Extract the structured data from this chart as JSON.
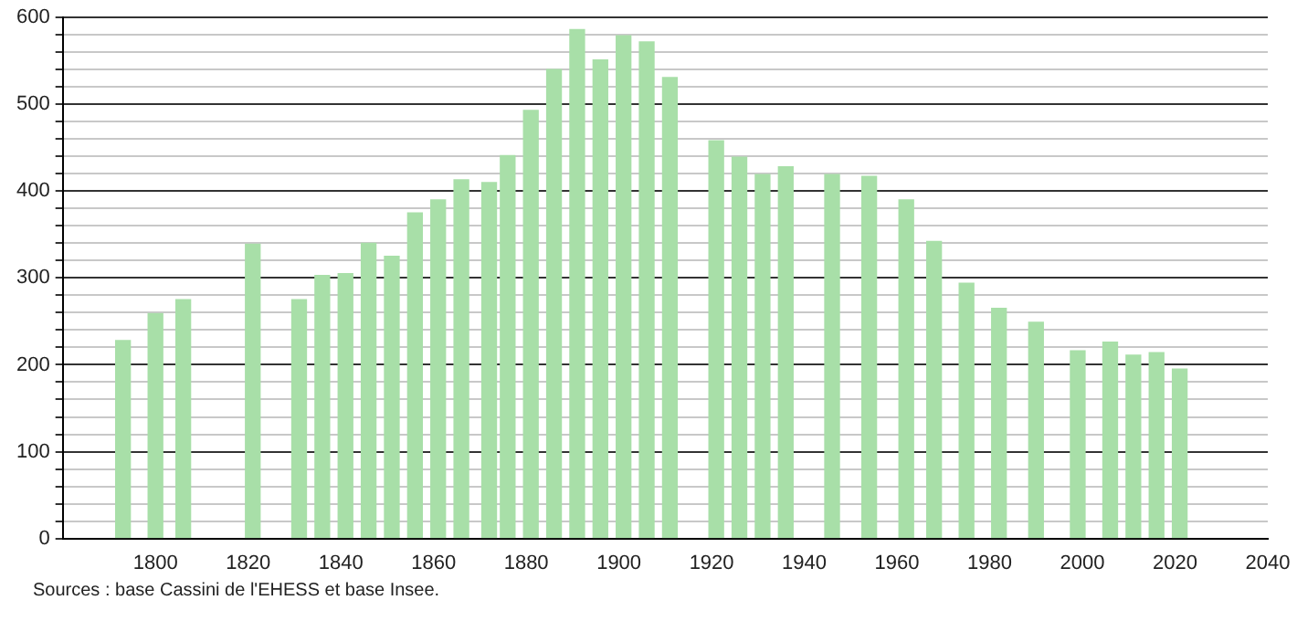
{
  "chart_data": {
    "type": "bar",
    "x": [
      1793,
      1800,
      1806,
      1821,
      1831,
      1836,
      1841,
      1846,
      1851,
      1856,
      1861,
      1866,
      1872,
      1876,
      1881,
      1886,
      1891,
      1896,
      1901,
      1906,
      1911,
      1921,
      1926,
      1931,
      1936,
      1946,
      1954,
      1962,
      1968,
      1975,
      1982,
      1990,
      1999,
      2006,
      2011,
      2016,
      2021
    ],
    "values": [
      228,
      259,
      275,
      339,
      275,
      303,
      305,
      340,
      325,
      375,
      390,
      413,
      410,
      441,
      493,
      540,
      586,
      551,
      579,
      572,
      531,
      458,
      439,
      419,
      428,
      419,
      417,
      390,
      342,
      294,
      265,
      249,
      216,
      226,
      211,
      214,
      195
    ],
    "color": "#a8dfa8",
    "xlim": [
      1780,
      2040
    ],
    "xticks": [
      1800,
      1820,
      1840,
      1860,
      1880,
      1900,
      1920,
      1940,
      1960,
      1980,
      2000,
      2020,
      2040
    ],
    "ylim": [
      0,
      600
    ],
    "yticks": [
      0,
      {
        "value": 20,
        "label": null
      },
      {
        "value": 40,
        "label": null
      },
      {
        "value": 60,
        "label": null
      },
      {
        "value": 80,
        "label": null
      },
      100,
      {
        "value": 120,
        "label": null
      },
      {
        "value": 140,
        "label": null
      },
      {
        "value": 160,
        "label": null
      },
      {
        "value": 180,
        "label": null
      },
      200,
      {
        "value": 220,
        "label": null
      },
      {
        "value": 240,
        "label": null
      },
      {
        "value": 260,
        "label": null
      },
      {
        "value": 280,
        "label": null
      },
      300,
      {
        "value": 320,
        "label": null
      },
      {
        "value": 340,
        "label": null
      },
      {
        "value": 360,
        "label": null
      },
      {
        "value": 380,
        "label": null
      },
      400,
      {
        "value": 420,
        "label": null
      },
      {
        "value": 440,
        "label": null
      },
      {
        "value": 460,
        "label": null
      },
      {
        "value": 480,
        "label": null
      },
      500,
      {
        "value": 520,
        "label": null
      },
      {
        "value": 540,
        "label": null
      },
      {
        "value": 560,
        "label": null
      },
      {
        "value": 580,
        "label": null
      },
      600
    ],
    "grid": "y",
    "annotations": [
      "Sources : base Cassini de l'EHESS et base Insee."
    ]
  }
}
